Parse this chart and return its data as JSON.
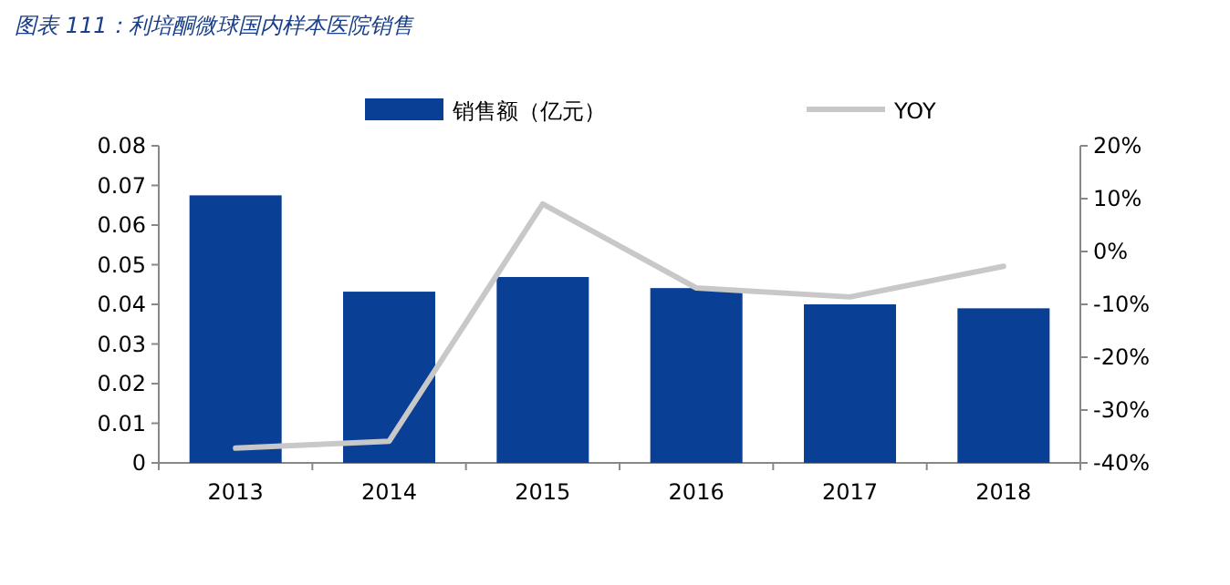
{
  "chart_data": {
    "type": "bar",
    "title": "图表 111：利培酮微球国内样本医院销售",
    "categories": [
      "2013",
      "2014",
      "2015",
      "2016",
      "2017",
      "2018"
    ],
    "series": [
      {
        "name": "销售额（亿元）",
        "color": "#0a3f96",
        "values": [
          0.0675,
          0.0432,
          0.0469,
          0.0441,
          0.04,
          0.039
        ]
      },
      {
        "name": "YOY",
        "type": "line",
        "axis": "y2",
        "color": "#c8c8c8",
        "values": [
          -37.2,
          -35.9,
          9.0,
          -6.9,
          -8.6,
          -2.8
        ]
      }
    ],
    "ylim": [
      0,
      0.08
    ],
    "yticks": [
      0,
      0.01,
      0.02,
      0.03,
      0.04,
      0.05,
      0.06,
      0.07,
      0.08
    ],
    "y2lim": [
      -40,
      20
    ],
    "y2ticks": [
      {
        "value": -40,
        "label": "-40%"
      },
      {
        "value": -30,
        "label": "-30%"
      },
      {
        "value": -20,
        "label": "-20%"
      },
      {
        "value": -10,
        "label": "-10%"
      },
      {
        "value": 0,
        "label": "0%"
      },
      {
        "value": 10,
        "label": "10%"
      },
      {
        "value": 20,
        "label": "20%"
      }
    ],
    "legend": "top",
    "grid": false
  }
}
